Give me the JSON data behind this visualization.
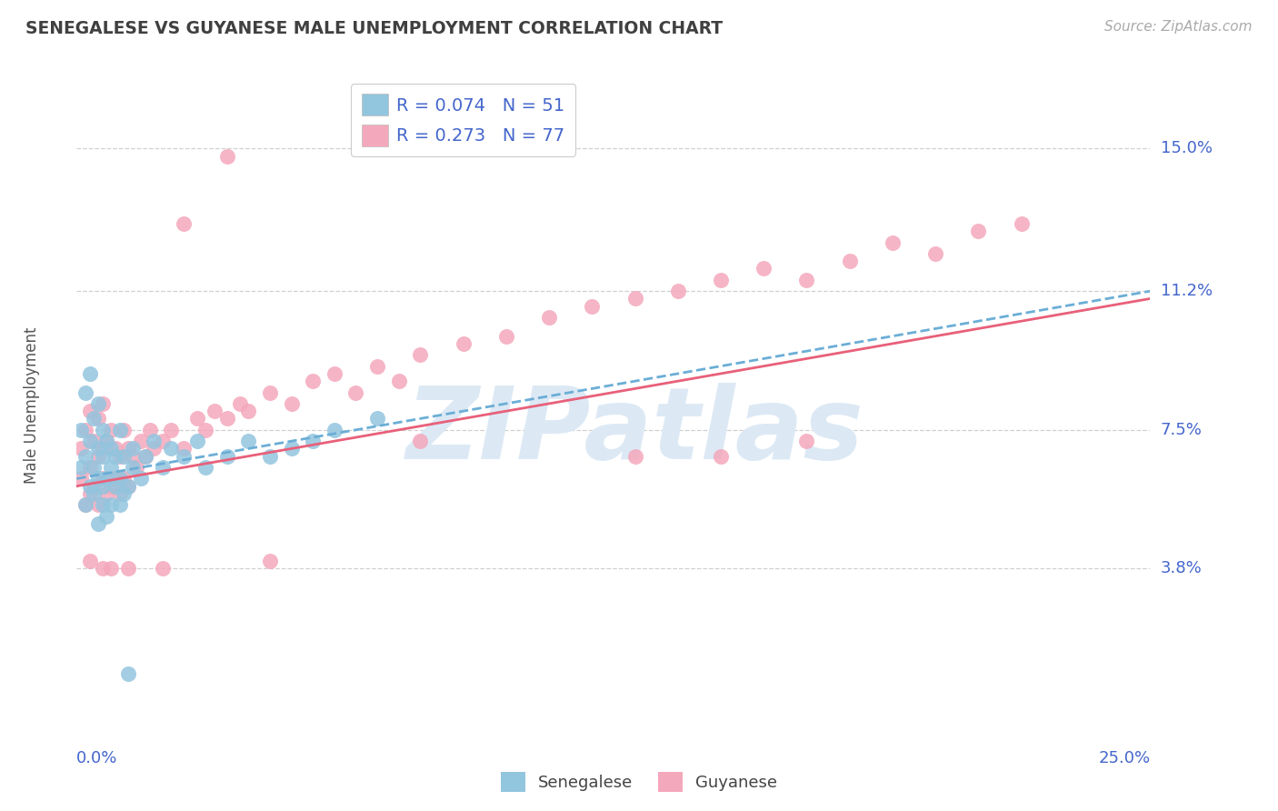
{
  "title": "SENEGALESE VS GUYANESE MALE UNEMPLOYMENT CORRELATION CHART",
  "source_text": "Source: ZipAtlas.com",
  "ylabel": "Male Unemployment",
  "xlim": [
    0.0,
    0.25
  ],
  "ylim": [
    -0.005,
    0.168
  ],
  "ytick_vals": [
    0.038,
    0.075,
    0.112,
    0.15
  ],
  "ytick_labels": [
    "3.8%",
    "7.5%",
    "11.2%",
    "15.0%"
  ],
  "xtick_labels": [
    "0.0%",
    "25.0%"
  ],
  "senegalese_color": "#92c5de",
  "guyanese_color": "#f4a8bc",
  "trend_senegalese_color": "#6baed6",
  "trend_guyanese_color": "#e8607a",
  "background_color": "#ffffff",
  "watermark_color": "#dce9f5",
  "grid_color": "#d0d0d0",
  "R_senegalese": 0.074,
  "N_senegalese": 51,
  "R_guyanese": 0.273,
  "N_guyanese": 77,
  "title_color": "#404040",
  "axis_label_color": "#4466cc",
  "trend_sen_x0": 0.0,
  "trend_sen_y0": 0.062,
  "trend_sen_x1": 0.25,
  "trend_sen_y1": 0.112,
  "trend_guy_x0": 0.0,
  "trend_guy_x1": 0.25,
  "trend_guy_y0": 0.06,
  "trend_guy_y1": 0.11,
  "senegalese_points_x": [
    0.001,
    0.001,
    0.002,
    0.002,
    0.002,
    0.003,
    0.003,
    0.003,
    0.004,
    0.004,
    0.004,
    0.005,
    0.005,
    0.005,
    0.005,
    0.006,
    0.006,
    0.006,
    0.006,
    0.007,
    0.007,
    0.007,
    0.008,
    0.008,
    0.008,
    0.009,
    0.009,
    0.01,
    0.01,
    0.01,
    0.011,
    0.011,
    0.012,
    0.013,
    0.013,
    0.015,
    0.016,
    0.018,
    0.02,
    0.022,
    0.025,
    0.028,
    0.03,
    0.035,
    0.04,
    0.045,
    0.05,
    0.055,
    0.06,
    0.07,
    0.012
  ],
  "senegalese_points_y": [
    0.065,
    0.075,
    0.055,
    0.068,
    0.085,
    0.06,
    0.072,
    0.09,
    0.058,
    0.065,
    0.078,
    0.05,
    0.062,
    0.07,
    0.082,
    0.055,
    0.06,
    0.068,
    0.075,
    0.052,
    0.062,
    0.072,
    0.055,
    0.065,
    0.07,
    0.06,
    0.068,
    0.055,
    0.062,
    0.075,
    0.058,
    0.068,
    0.06,
    0.065,
    0.07,
    0.062,
    0.068,
    0.072,
    0.065,
    0.07,
    0.068,
    0.072,
    0.065,
    0.068,
    0.072,
    0.068,
    0.07,
    0.072,
    0.075,
    0.078,
    0.01
  ],
  "guyanese_points_x": [
    0.001,
    0.001,
    0.002,
    0.002,
    0.003,
    0.003,
    0.003,
    0.004,
    0.004,
    0.005,
    0.005,
    0.005,
    0.006,
    0.006,
    0.006,
    0.007,
    0.007,
    0.008,
    0.008,
    0.009,
    0.009,
    0.01,
    0.01,
    0.011,
    0.011,
    0.012,
    0.012,
    0.013,
    0.014,
    0.015,
    0.016,
    0.017,
    0.018,
    0.02,
    0.022,
    0.025,
    0.028,
    0.03,
    0.032,
    0.035,
    0.038,
    0.04,
    0.045,
    0.05,
    0.055,
    0.06,
    0.065,
    0.07,
    0.075,
    0.08,
    0.09,
    0.1,
    0.11,
    0.12,
    0.13,
    0.14,
    0.15,
    0.16,
    0.17,
    0.18,
    0.19,
    0.2,
    0.21,
    0.22,
    0.025,
    0.035,
    0.08,
    0.1,
    0.13,
    0.15,
    0.17,
    0.003,
    0.006,
    0.008,
    0.012,
    0.02,
    0.045
  ],
  "guyanese_points_y": [
    0.062,
    0.07,
    0.055,
    0.075,
    0.058,
    0.065,
    0.08,
    0.06,
    0.072,
    0.055,
    0.068,
    0.078,
    0.062,
    0.07,
    0.082,
    0.058,
    0.072,
    0.06,
    0.075,
    0.062,
    0.07,
    0.058,
    0.068,
    0.062,
    0.075,
    0.06,
    0.07,
    0.068,
    0.065,
    0.072,
    0.068,
    0.075,
    0.07,
    0.072,
    0.075,
    0.07,
    0.078,
    0.075,
    0.08,
    0.078,
    0.082,
    0.08,
    0.085,
    0.082,
    0.088,
    0.09,
    0.085,
    0.092,
    0.088,
    0.095,
    0.098,
    0.1,
    0.105,
    0.108,
    0.11,
    0.112,
    0.115,
    0.118,
    0.115,
    0.12,
    0.125,
    0.122,
    0.128,
    0.13,
    0.13,
    0.148,
    0.072,
    0.155,
    0.068,
    0.068,
    0.072,
    0.04,
    0.038,
    0.038,
    0.038,
    0.038,
    0.04
  ]
}
